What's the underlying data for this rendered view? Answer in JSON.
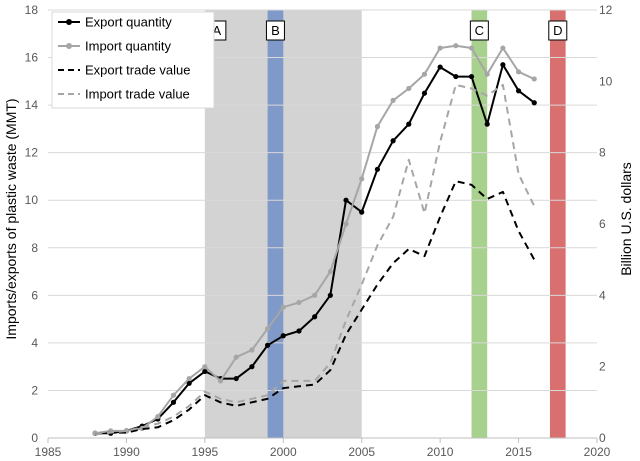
{
  "chart_data": {
    "type": "line",
    "ylabel": "Imports/exports of plastic waste (MMT)",
    "y2label": "Billion U.S. dollars",
    "xlim": [
      1985,
      2020
    ],
    "ylim": [
      0,
      18
    ],
    "y2lim": [
      0,
      12
    ],
    "x_ticks": [
      "1985",
      "1990",
      "1995",
      "2000",
      "2005",
      "2010",
      "2015",
      "2020"
    ],
    "y_ticks": [
      "0",
      "2",
      "4",
      "6",
      "8",
      "10",
      "12",
      "14",
      "16",
      "18"
    ],
    "y2_ticks": [
      "0",
      "2",
      "4",
      "6",
      "8",
      "10",
      "12"
    ],
    "legend_position": "top-left",
    "bands": [
      {
        "label": "A",
        "x0": 1995,
        "x1": 2005,
        "color": "#d3d3d3"
      },
      {
        "label": "B",
        "x0": 1999,
        "x1": 2000,
        "color": "#7f99c8"
      },
      {
        "label": "C",
        "x0": 2012,
        "x1": 2013,
        "color": "#a9d18e"
      },
      {
        "label": "D",
        "x0": 2017,
        "x1": 2018,
        "color": "#d97070"
      }
    ],
    "x": [
      1988,
      1989,
      1990,
      1991,
      1992,
      1993,
      1994,
      1995,
      1996,
      1997,
      1998,
      1999,
      2000,
      2001,
      2002,
      2003,
      2004,
      2005,
      2006,
      2007,
      2008,
      2009,
      2010,
      2011,
      2012,
      2013,
      2014,
      2015,
      2016
    ],
    "series": [
      {
        "name": "Export quantity",
        "axis": "left",
        "color": "#000000",
        "dash": "solid",
        "markers": true,
        "values": [
          0.2,
          0.2,
          0.3,
          0.5,
          0.8,
          1.5,
          2.3,
          2.8,
          2.5,
          2.5,
          3.0,
          3.9,
          4.3,
          4.5,
          5.1,
          6.0,
          10.0,
          9.5,
          11.3,
          12.5,
          13.2,
          14.5,
          15.6,
          15.2,
          15.2,
          13.2,
          15.7,
          14.6,
          14.1
        ]
      },
      {
        "name": "Import quantity",
        "axis": "left",
        "color": "#a6a6a6",
        "dash": "solid",
        "markers": true,
        "values": [
          0.2,
          0.3,
          0.3,
          0.4,
          0.9,
          1.8,
          2.5,
          3.0,
          2.4,
          3.4,
          3.7,
          4.6,
          5.5,
          5.7,
          6.0,
          7.0,
          9.0,
          10.9,
          13.1,
          14.2,
          14.7,
          15.3,
          16.4,
          16.5,
          16.4,
          15.3,
          16.4,
          15.4,
          15.1
        ]
      },
      {
        "name": "Export trade value",
        "axis": "right",
        "color": "#000000",
        "dash": "dashed",
        "markers": false,
        "values": [
          0.1,
          0.15,
          0.15,
          0.25,
          0.3,
          0.5,
          0.8,
          1.2,
          1.0,
          0.9,
          1.0,
          1.1,
          1.4,
          1.45,
          1.5,
          1.9,
          2.9,
          3.6,
          4.3,
          4.9,
          5.3,
          5.1,
          6.2,
          7.2,
          7.1,
          6.7,
          6.9,
          5.8,
          5.0
        ]
      },
      {
        "name": "Import trade value",
        "axis": "right",
        "color": "#a6a6a6",
        "dash": "dashed",
        "markers": false,
        "values": [
          0.1,
          0.15,
          0.2,
          0.3,
          0.4,
          0.6,
          0.9,
          1.3,
          1.1,
          1.0,
          1.1,
          1.2,
          1.6,
          1.6,
          1.6,
          2.1,
          3.3,
          4.3,
          5.4,
          6.2,
          7.8,
          6.3,
          8.3,
          9.9,
          9.8,
          9.6,
          9.9,
          7.4,
          6.5
        ]
      }
    ]
  }
}
